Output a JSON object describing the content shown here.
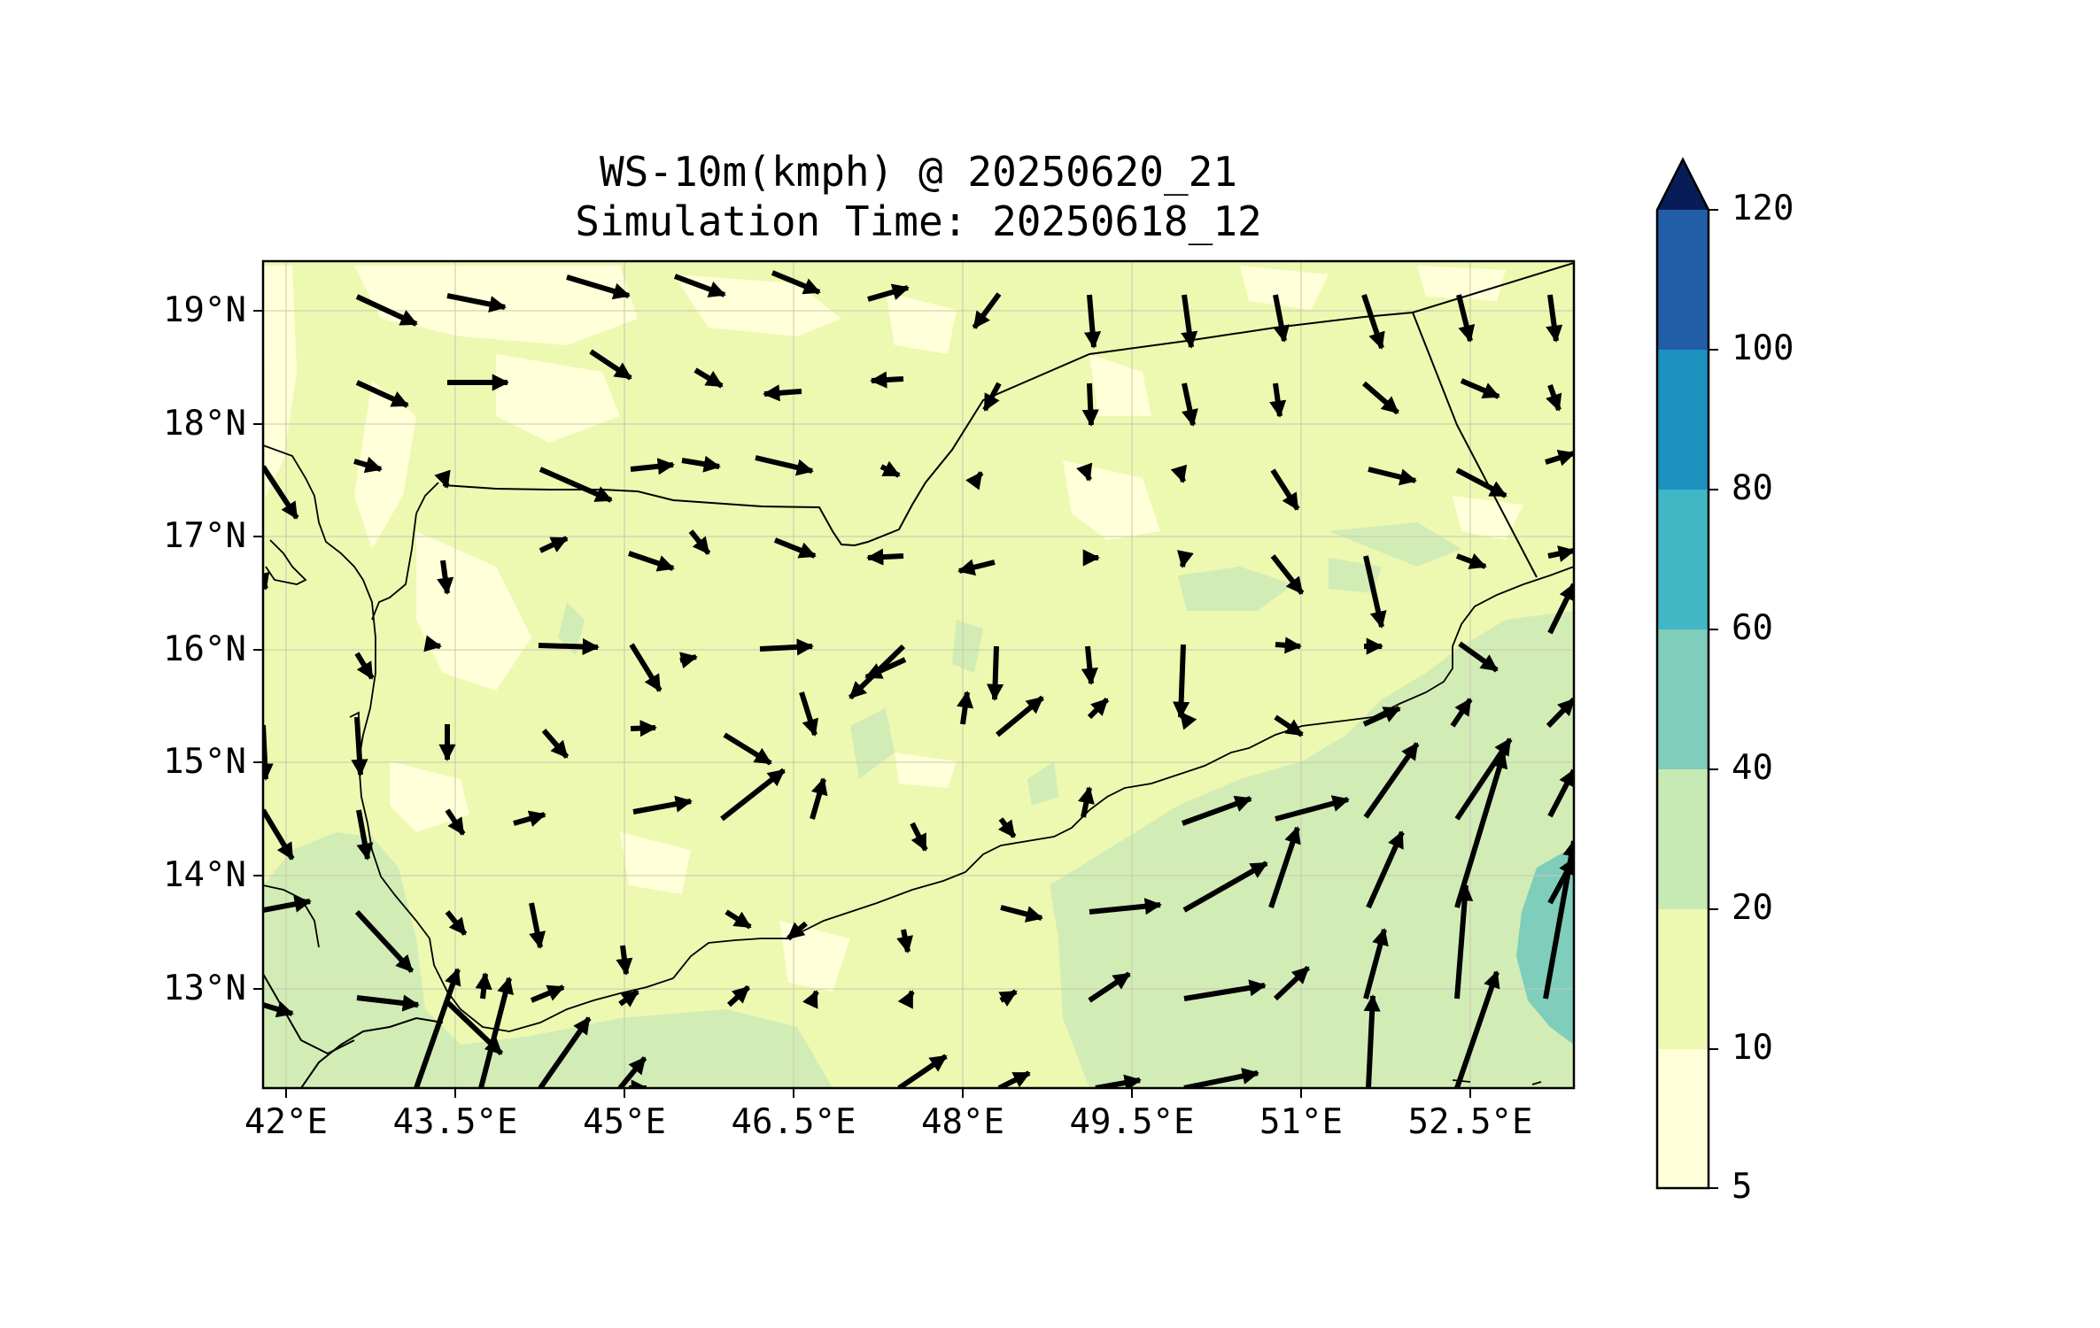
{
  "title": "WS-10m(kmph) @ 20250620_21",
  "subtitle": "Simulation Time: 20250618_12",
  "map": {
    "lon_range": [
      41.95,
      53.75
    ],
    "lat_range": [
      12.05,
      19.45
    ],
    "lon_ticks": [
      {
        "value": 42.0,
        "label": "42°E"
      },
      {
        "value": 43.5,
        "label": "43.5°E"
      },
      {
        "value": 45.0,
        "label": "45°E"
      },
      {
        "value": 46.5,
        "label": "46.5°E"
      },
      {
        "value": 48.0,
        "label": "48°E"
      },
      {
        "value": 49.5,
        "label": "49.5°E"
      },
      {
        "value": 51.0,
        "label": "51°E"
      },
      {
        "value": 52.5,
        "label": "52.5°E"
      }
    ],
    "lat_ticks": [
      {
        "value": 19,
        "label": "19°N"
      },
      {
        "value": 18,
        "label": "18°N"
      },
      {
        "value": 17,
        "label": "17°N"
      },
      {
        "value": 16,
        "label": "16°N"
      },
      {
        "value": 15,
        "label": "15°N"
      },
      {
        "value": 14,
        "label": "14°N"
      },
      {
        "value": 13,
        "label": "13°N"
      }
    ]
  },
  "colorbar": {
    "levels": [
      "5",
      "10",
      "20",
      "40",
      "60",
      "80",
      "100",
      "120"
    ],
    "colors": [
      "#ffffd9",
      "#edf8b1",
      "#c7e9b4",
      "#7fcdbb",
      "#41b6c4",
      "#1d91c0",
      "#225ea8",
      "#0c2c84"
    ],
    "extend_color": "#081d58"
  },
  "colors": {
    "land_base": "#edf8b1",
    "light": "#ffffd9",
    "mid": "#d2ecb6",
    "teal": "#7fcdbb",
    "border": "#000000",
    "arrow": "#000000"
  }
}
